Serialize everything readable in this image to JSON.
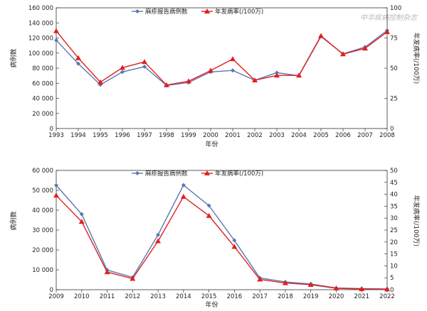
{
  "watermark": "中华疾病控制杂志",
  "chart_data": [
    {
      "type": "line",
      "x": [
        "1993",
        "1994",
        "1995",
        "1996",
        "1997",
        "1998",
        "1999",
        "2000",
        "2001",
        "2002",
        "2003",
        "2004",
        "2005",
        "2006",
        "2007",
        "2008"
      ],
      "xlabel": "年份",
      "ylabel_left": "病例数",
      "ylabel_right": "年发病率(/100万)",
      "ylim_left": [
        0,
        160000
      ],
      "yticks_left": [
        "0",
        "20 000",
        "40 000",
        "60 000",
        "80 000",
        "100 000",
        "120 000",
        "140 000",
        "160 000"
      ],
      "ylim_right": [
        0,
        125
      ],
      "yticks_right": [
        "0",
        "25",
        "50",
        "75",
        "100"
      ],
      "legend_position": "top",
      "grid": false,
      "series": [
        {
          "name": "麻疹报告病例数",
          "axis": "left",
          "marker": "diamond",
          "color": "#5b78b0",
          "values": [
            117000,
            86000,
            58000,
            75000,
            82000,
            57000,
            61000,
            75000,
            77000,
            64000,
            74000,
            70000,
            122000,
            99000,
            108000,
            130000
          ]
        },
        {
          "name": "年发病率(/100万)",
          "axis": "right",
          "marker": "triangle",
          "color": "#e02020",
          "values": [
            101,
            73,
            48,
            63,
            69,
            45,
            49,
            60,
            72,
            50,
            55,
            55,
            96,
            77,
            83,
            100
          ]
        }
      ]
    },
    {
      "type": "line",
      "x": [
        "2009",
        "2010",
        "2011",
        "2012",
        "2013",
        "2014",
        "2015",
        "2016",
        "2017",
        "2018",
        "2019",
        "2020",
        "2021",
        "2022"
      ],
      "xlabel": "年份",
      "ylabel_left": "病例数",
      "ylabel_right": "年发病率(/100万)",
      "ylim_left": [
        0,
        60000
      ],
      "yticks_left": [
        "0",
        "10 000",
        "20 000",
        "30 000",
        "40 000",
        "50 000",
        "60 000"
      ],
      "ylim_right": [
        0,
        50
      ],
      "yticks_right": [
        "0",
        "5",
        "10",
        "15",
        "20",
        "25",
        "30",
        "35",
        "40",
        "45",
        "50"
      ],
      "legend_position": "top",
      "grid": false,
      "series": [
        {
          "name": "麻疹报告病例数",
          "axis": "left",
          "marker": "diamond",
          "color": "#5b78b0",
          "values": [
            52500,
            38000,
            9900,
            6200,
            27600,
            52600,
            42300,
            24800,
            5900,
            3900,
            2900,
            860,
            550,
            400
          ]
        },
        {
          "name": "年发病率(/100万)",
          "axis": "right",
          "marker": "triangle",
          "color": "#e02020",
          "values": [
            39.5,
            28.5,
            7.4,
            4.6,
            20.4,
            39.0,
            31.0,
            18.0,
            4.3,
            2.8,
            2.1,
            0.6,
            0.3,
            0.2
          ]
        }
      ]
    }
  ]
}
